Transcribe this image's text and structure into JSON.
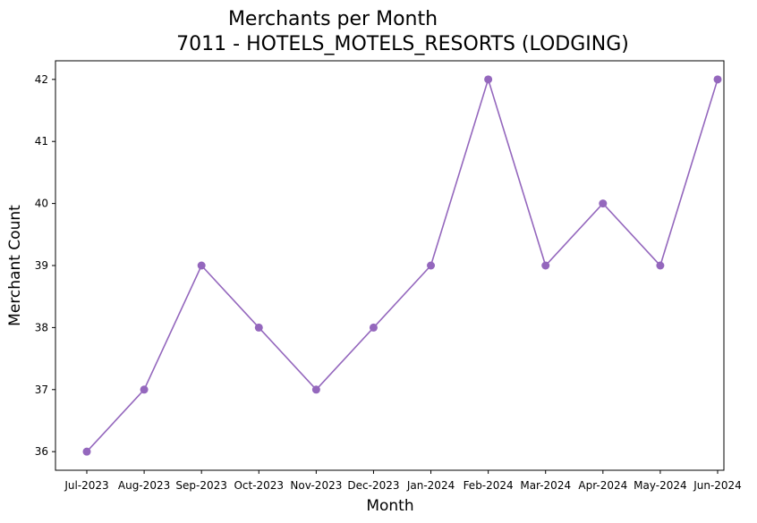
{
  "chart_data": {
    "type": "line",
    "title": "Merchants per Month",
    "subtitle": "7011 - HOTELS_MOTELS_RESORTS (LODGING)",
    "xlabel": "Month",
    "ylabel": "Merchant Count",
    "categories": [
      "Jul-2023",
      "Aug-2023",
      "Sep-2023",
      "Oct-2023",
      "Nov-2023",
      "Dec-2023",
      "Jan-2024",
      "Feb-2024",
      "Mar-2024",
      "Apr-2024",
      "May-2024",
      "Jun-2024"
    ],
    "series": [
      {
        "values": [
          36,
          37,
          39,
          38,
          37,
          38,
          39,
          42,
          39,
          40,
          39,
          42
        ],
        "color": "#9467bd"
      }
    ],
    "yticks": [
      36,
      37,
      38,
      39,
      40,
      41,
      42
    ],
    "ylim": [
      35.7,
      42.3
    ],
    "grid": false,
    "legend": "none"
  }
}
